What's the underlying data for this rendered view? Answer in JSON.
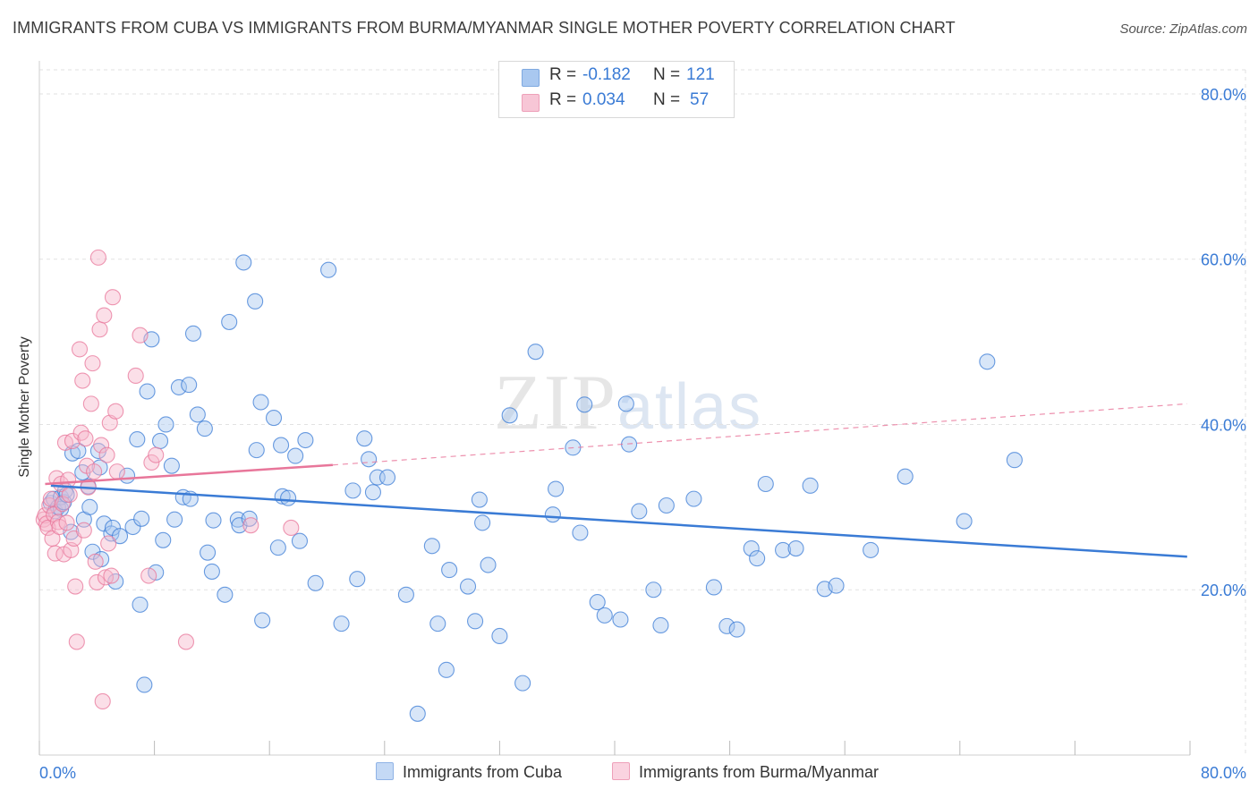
{
  "title": "IMMIGRANTS FROM CUBA VS IMMIGRANTS FROM BURMA/MYANMAR SINGLE MOTHER POVERTY CORRELATION CHART",
  "source": "Source: ZipAtlas.com",
  "watermark": {
    "zip": "ZIP",
    "atlas": "atlas"
  },
  "legend": {
    "r_label": "R =",
    "n_label": "N =",
    "rows": [
      {
        "r": "-0.182",
        "n": "121",
        "color": "#a9c8f0"
      },
      {
        "r": "0.034",
        "n": "57",
        "color": "#f7b9cd"
      }
    ]
  },
  "bottom_legend": [
    {
      "label": "Immigrants from Cuba",
      "color": "#a9c8f0"
    },
    {
      "label": "Immigrants from Burma/Myanmar",
      "color": "#f7b9cd"
    }
  ],
  "chart_data": {
    "type": "scatter",
    "title": "IMMIGRANTS FROM CUBA VS IMMIGRANTS FROM BURMA/MYANMAR SINGLE MOTHER POVERTY CORRELATION CHART",
    "xlabel": "",
    "ylabel": "Single Mother Poverty",
    "xlim": [
      0,
      80
    ],
    "ylim": [
      0,
      84
    ],
    "x_tick_labels": [
      "0.0%",
      "80.0%"
    ],
    "y_ticks": [
      20,
      40,
      60,
      80
    ],
    "y_tick_labels": [
      "20.0%",
      "40.0%",
      "60.0%",
      "80.0%"
    ],
    "grid": true,
    "legend_position": "top-center",
    "series": [
      {
        "name": "Immigrants from Cuba",
        "color": "#3a7bd5",
        "fill": "#a9c8f0",
        "trend": {
          "x": [
            0.8,
            79.8
          ],
          "y": [
            32.6,
            24.0
          ],
          "style": "solid"
        },
        "points": [
          [
            0.8,
            30.5
          ],
          [
            1.0,
            31.0
          ],
          [
            1.1,
            29.5
          ],
          [
            1.3,
            30.0
          ],
          [
            1.5,
            31.2
          ],
          [
            1.5,
            29.8
          ],
          [
            1.7,
            30.6
          ],
          [
            1.8,
            32.0
          ],
          [
            1.9,
            31.5
          ],
          [
            2.2,
            27.0
          ],
          [
            2.3,
            36.5
          ],
          [
            2.7,
            36.8
          ],
          [
            3.0,
            34.2
          ],
          [
            3.1,
            28.5
          ],
          [
            3.4,
            32.5
          ],
          [
            3.5,
            30.0
          ],
          [
            3.7,
            24.6
          ],
          [
            4.1,
            36.8
          ],
          [
            4.2,
            34.8
          ],
          [
            4.3,
            23.7
          ],
          [
            4.5,
            28.0
          ],
          [
            5.0,
            26.8
          ],
          [
            5.1,
            27.5
          ],
          [
            5.3,
            21.0
          ],
          [
            5.6,
            26.5
          ],
          [
            6.1,
            33.8
          ],
          [
            6.5,
            27.6
          ],
          [
            6.8,
            38.2
          ],
          [
            7.0,
            18.2
          ],
          [
            7.1,
            28.6
          ],
          [
            7.3,
            8.5
          ],
          [
            7.5,
            44.0
          ],
          [
            7.8,
            50.3
          ],
          [
            8.1,
            22.1
          ],
          [
            8.4,
            38.0
          ],
          [
            8.6,
            26.0
          ],
          [
            8.8,
            40.0
          ],
          [
            9.2,
            35.0
          ],
          [
            9.4,
            28.5
          ],
          [
            9.7,
            44.5
          ],
          [
            10.0,
            31.2
          ],
          [
            10.4,
            44.8
          ],
          [
            10.5,
            31.0
          ],
          [
            10.7,
            51.0
          ],
          [
            11.0,
            41.2
          ],
          [
            11.5,
            39.5
          ],
          [
            11.7,
            24.5
          ],
          [
            12.0,
            22.2
          ],
          [
            12.1,
            28.4
          ],
          [
            12.9,
            19.4
          ],
          [
            13.2,
            52.4
          ],
          [
            13.8,
            28.5
          ],
          [
            13.9,
            27.8
          ],
          [
            14.2,
            59.6
          ],
          [
            14.6,
            28.6
          ],
          [
            15.0,
            54.9
          ],
          [
            15.1,
            36.9
          ],
          [
            15.4,
            42.7
          ],
          [
            15.5,
            16.3
          ],
          [
            16.3,
            40.8
          ],
          [
            16.6,
            25.1
          ],
          [
            16.8,
            37.5
          ],
          [
            16.9,
            31.3
          ],
          [
            17.3,
            31.1
          ],
          [
            17.8,
            36.2
          ],
          [
            18.1,
            25.9
          ],
          [
            18.5,
            38.1
          ],
          [
            19.2,
            20.8
          ],
          [
            20.1,
            58.7
          ],
          [
            21.0,
            15.9
          ],
          [
            21.8,
            32.0
          ],
          [
            22.1,
            21.3
          ],
          [
            22.6,
            38.3
          ],
          [
            22.9,
            35.8
          ],
          [
            23.2,
            31.8
          ],
          [
            23.5,
            33.6
          ],
          [
            24.2,
            33.6
          ],
          [
            25.5,
            19.4
          ],
          [
            26.3,
            5.0
          ],
          [
            27.3,
            25.3
          ],
          [
            27.7,
            15.9
          ],
          [
            28.3,
            10.3
          ],
          [
            28.5,
            22.4
          ],
          [
            29.8,
            20.4
          ],
          [
            30.3,
            16.2
          ],
          [
            30.6,
            30.9
          ],
          [
            30.8,
            28.1
          ],
          [
            31.2,
            23.0
          ],
          [
            32.0,
            14.4
          ],
          [
            32.7,
            41.1
          ],
          [
            33.6,
            8.7
          ],
          [
            34.5,
            48.8
          ],
          [
            35.7,
            29.1
          ],
          [
            35.9,
            32.2
          ],
          [
            37.1,
            37.2
          ],
          [
            37.6,
            26.9
          ],
          [
            37.9,
            42.4
          ],
          [
            38.8,
            18.5
          ],
          [
            39.3,
            16.9
          ],
          [
            40.4,
            16.4
          ],
          [
            40.8,
            42.5
          ],
          [
            41.0,
            37.6
          ],
          [
            41.7,
            29.5
          ],
          [
            42.7,
            20.0
          ],
          [
            43.2,
            15.7
          ],
          [
            43.6,
            30.2
          ],
          [
            45.5,
            31.0
          ],
          [
            46.9,
            20.3
          ],
          [
            47.8,
            15.6
          ],
          [
            48.5,
            15.2
          ],
          [
            49.5,
            25.0
          ],
          [
            49.9,
            23.8
          ],
          [
            50.5,
            32.8
          ],
          [
            51.7,
            24.8
          ],
          [
            52.6,
            25.0
          ],
          [
            53.6,
            32.6
          ],
          [
            54.6,
            20.1
          ],
          [
            55.4,
            20.5
          ],
          [
            57.8,
            24.8
          ],
          [
            60.2,
            33.7
          ],
          [
            64.3,
            28.3
          ],
          [
            65.9,
            47.6
          ],
          [
            67.8,
            35.7
          ]
        ]
      },
      {
        "name": "Immigrants from Burma/Myanmar",
        "color": "#e8769a",
        "fill": "#f7b9cd",
        "trend": {
          "x": [
            0.4,
            20.4
          ],
          "y": [
            32.8,
            35.1
          ],
          "style": "solid"
        },
        "trend_extension": {
          "x": [
            20.4,
            79.8
          ],
          "y": [
            35.1,
            42.5
          ],
          "style": "dashed"
        },
        "points": [
          [
            0.3,
            28.5
          ],
          [
            0.4,
            29.0
          ],
          [
            0.5,
            28.0
          ],
          [
            0.6,
            27.5
          ],
          [
            0.7,
            30.2
          ],
          [
            0.8,
            31.0
          ],
          [
            0.9,
            26.2
          ],
          [
            1.0,
            29.1
          ],
          [
            1.1,
            24.4
          ],
          [
            1.2,
            33.5
          ],
          [
            1.3,
            28.2
          ],
          [
            1.4,
            27.6
          ],
          [
            1.5,
            32.8
          ],
          [
            1.6,
            30.4
          ],
          [
            1.7,
            24.3
          ],
          [
            1.8,
            37.8
          ],
          [
            1.9,
            28.1
          ],
          [
            2.0,
            33.3
          ],
          [
            2.1,
            31.5
          ],
          [
            2.2,
            24.8
          ],
          [
            2.3,
            38.0
          ],
          [
            2.4,
            26.2
          ],
          [
            2.5,
            20.4
          ],
          [
            2.6,
            13.7
          ],
          [
            2.8,
            49.1
          ],
          [
            2.9,
            39.0
          ],
          [
            3.0,
            45.3
          ],
          [
            3.1,
            27.2
          ],
          [
            3.2,
            38.3
          ],
          [
            3.3,
            35.0
          ],
          [
            3.4,
            32.4
          ],
          [
            3.6,
            42.5
          ],
          [
            3.7,
            47.4
          ],
          [
            3.8,
            34.3
          ],
          [
            3.9,
            23.4
          ],
          [
            4.0,
            20.9
          ],
          [
            4.1,
            60.2
          ],
          [
            4.2,
            51.5
          ],
          [
            4.3,
            37.5
          ],
          [
            4.4,
            6.5
          ],
          [
            4.5,
            53.2
          ],
          [
            4.6,
            21.5
          ],
          [
            4.7,
            36.3
          ],
          [
            4.8,
            25.6
          ],
          [
            4.9,
            40.2
          ],
          [
            5.0,
            21.7
          ],
          [
            5.1,
            55.4
          ],
          [
            5.3,
            41.6
          ],
          [
            5.4,
            34.3
          ],
          [
            6.7,
            45.9
          ],
          [
            7.0,
            50.8
          ],
          [
            7.6,
            21.7
          ],
          [
            7.8,
            35.4
          ],
          [
            8.1,
            36.3
          ],
          [
            10.2,
            13.7
          ],
          [
            14.7,
            27.8
          ],
          [
            17.5,
            27.5
          ]
        ]
      }
    ]
  }
}
